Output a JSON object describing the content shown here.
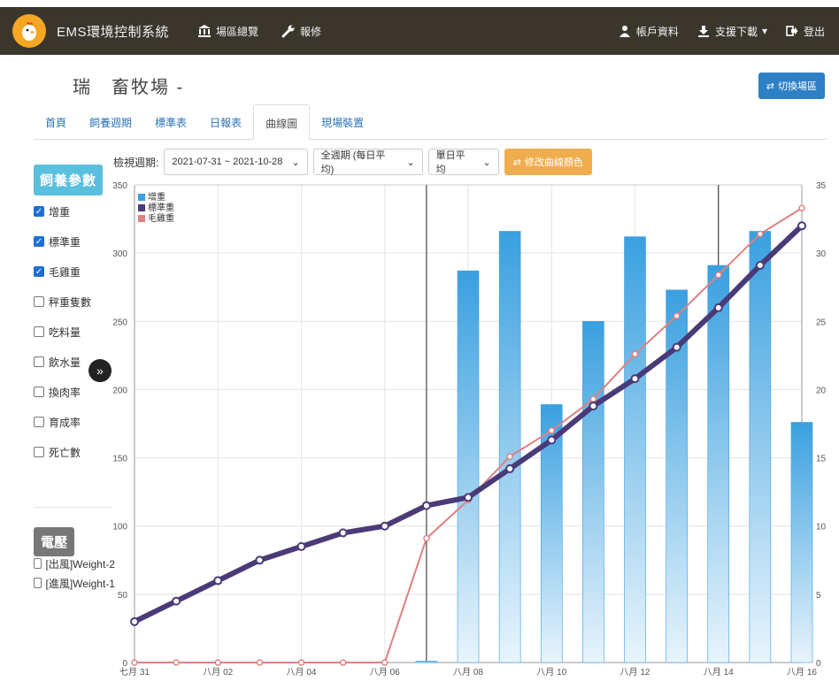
{
  "app": {
    "brand": "EMS環境控制系統",
    "nav": [
      {
        "label": "場區總覽",
        "icon": "bank-icon"
      },
      {
        "label": "報修",
        "icon": "wrench-icon"
      }
    ],
    "nav_right": [
      {
        "label": "帳戶資料",
        "icon": "user-icon"
      },
      {
        "label": "支援下載",
        "icon": "download-icon"
      },
      {
        "label": "登出",
        "icon": "logout-icon"
      }
    ]
  },
  "page": {
    "farm_name": "瑞　畜牧場 -",
    "switch_label": "切換場區"
  },
  "tabs": [
    {
      "label": "首頁",
      "active": false
    },
    {
      "label": "飼養週期",
      "active": false
    },
    {
      "label": "標準表",
      "active": false
    },
    {
      "label": "日報表",
      "active": false
    },
    {
      "label": "曲線圖",
      "active": true
    },
    {
      "label": "現場裝置",
      "active": false
    }
  ],
  "filters": {
    "period_label": "檢視週期:",
    "period_value": "2021-07-31 ~ 2021-10-28",
    "range_value": "全週期 (每日平均)",
    "mode_value": "單日平均",
    "recolor_label": "修改曲線顏色"
  },
  "sidebar": {
    "param_title": "飼養參數",
    "params": [
      {
        "label": "增重",
        "checked": true
      },
      {
        "label": "標準重",
        "checked": true
      },
      {
        "label": "毛雞重",
        "checked": true
      },
      {
        "label": "秤重隻數",
        "checked": false
      },
      {
        "label": "吃料量",
        "checked": false
      },
      {
        "label": "飲水量",
        "checked": false
      },
      {
        "label": "換肉率",
        "checked": false
      },
      {
        "label": "育成率",
        "checked": false
      },
      {
        "label": "死亡數",
        "checked": false
      }
    ],
    "volt_title": "電壓",
    "volt_items": [
      {
        "label": "[出風]Weight-2",
        "checked": false
      },
      {
        "label": "[進風]Weight-1",
        "checked": false
      }
    ]
  },
  "chart_data": {
    "type": "bar+line",
    "categories": [
      "七月 31",
      "八月 01",
      "八月 02",
      "八月 03",
      "八月 04",
      "八月 05",
      "八月 06",
      "八月 07",
      "八月 08",
      "八月 09",
      "八月 10",
      "八月 11",
      "八月 12",
      "八月 13",
      "八月 14",
      "八月 15",
      "八月 16"
    ],
    "x_tick_labels": [
      "七月 31",
      "八月 02",
      "八月 04",
      "八月 06",
      "八月 08",
      "八月 10",
      "八月 12",
      "八月 14",
      "八月 16"
    ],
    "y_left": {
      "min": 0,
      "max": 350,
      "ticks": [
        0,
        50,
        100,
        150,
        200,
        250,
        300,
        350
      ]
    },
    "y_right": {
      "min": 0,
      "max": 35,
      "ticks": [
        0,
        5,
        10,
        15,
        20,
        25,
        30,
        35
      ]
    },
    "legend_placement": "top-left",
    "grid": true,
    "series": [
      {
        "name": "增重",
        "type": "bar",
        "axis": "left",
        "color": "#3aa0e0",
        "values": [
          null,
          null,
          null,
          null,
          null,
          null,
          null,
          1,
          287,
          316,
          189,
          250,
          312,
          273,
          291,
          316,
          176
        ]
      },
      {
        "name": "標準重",
        "type": "line",
        "axis": "left",
        "color": "#4a3a78",
        "values": [
          30,
          45,
          60,
          75,
          85,
          95,
          100,
          115,
          121,
          142,
          163,
          188,
          208,
          231,
          260,
          291,
          320
        ]
      },
      {
        "name": "毛雞重",
        "type": "line",
        "axis": "left",
        "color": "#e08080",
        "values": [
          0,
          0,
          0,
          0,
          0,
          0,
          0,
          91,
          119,
          151,
          170,
          193,
          226,
          254,
          284,
          314,
          333
        ]
      }
    ],
    "vertical_markers": [
      "八月 07",
      "八月 14"
    ]
  }
}
